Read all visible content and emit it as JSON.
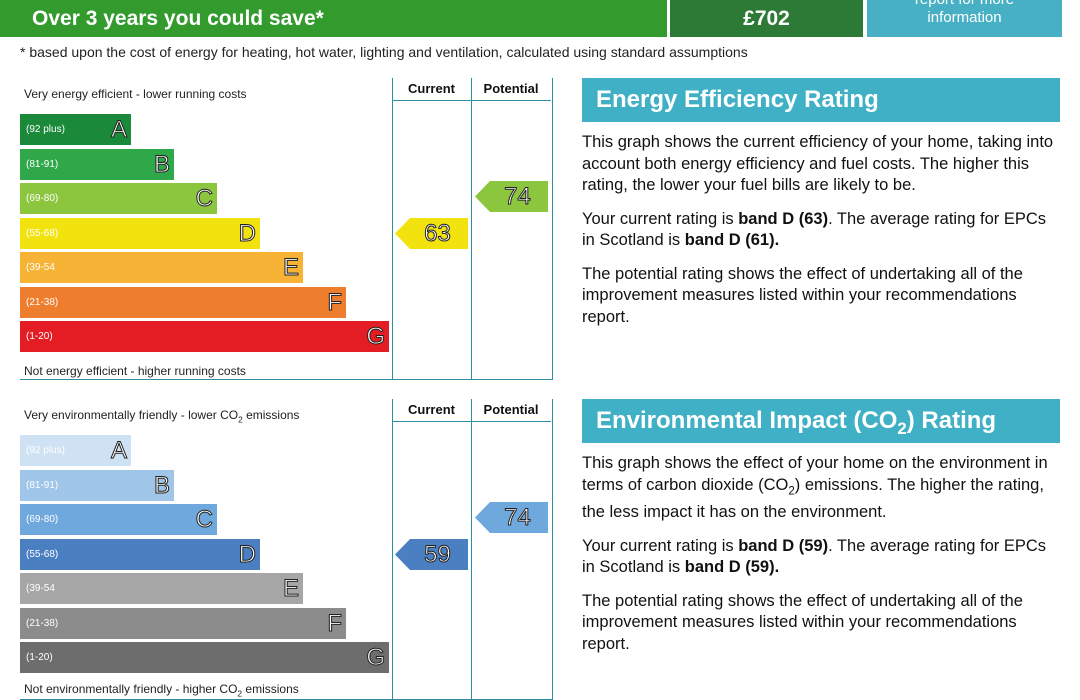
{
  "savings_bar": {
    "label": "Over 3 years you could save*",
    "amount": "£702",
    "link": "report for more information"
  },
  "footnote": "* based upon the cost of energy for heating, hot water, lighting and ventilation, calculated using standard assumptions",
  "ratings": [
    {
      "top_label": [
        {
          "text": "Very energy efficient - lower running costs"
        }
      ],
      "bottom_label": [
        {
          "text": "Not energy efficient - higher running costs"
        }
      ],
      "column_headers": [
        "Current",
        "Potential"
      ],
      "bands": [
        {
          "range": "(92 plus)",
          "letter": "A",
          "color": "#1a8a3a"
        },
        {
          "range": "(81-91)",
          "letter": "B",
          "color": "#2fa84a"
        },
        {
          "range": "(69-80)",
          "letter": "C",
          "color": "#8cc63f"
        },
        {
          "range": "(55-68)",
          "letter": "D",
          "color": "#f2e30f"
        },
        {
          "range": "(39-54",
          "letter": "E",
          "color": "#f6b335"
        },
        {
          "range": "(21-38)",
          "letter": "F",
          "color": "#ef7d2e"
        },
        {
          "range": "(1-20)",
          "letter": "G",
          "color": "#e31d23"
        }
      ],
      "current": 63,
      "potential": 74,
      "heading": [
        {
          "text": "Energy Efficiency Rating"
        }
      ],
      "paragraphs": [
        [
          {
            "text": "This graph shows the current efficiency of your home, taking into account both energy efficiency and fuel costs. The higher this rating, the lower your fuel bills are likely to be."
          }
        ],
        [
          {
            "text": "Your current rating is "
          },
          {
            "text": "band D (63)",
            "bold": true
          },
          {
            "text": ". The average rating for EPCs in Scotland is "
          },
          {
            "text": "band D (61).",
            "bold": true
          }
        ],
        [
          {
            "text": "The potential rating shows the effect of undertaking all of the improvement measures listed within your recommendations report."
          }
        ]
      ]
    },
    {
      "top_label": [
        {
          "text": "Very environmentally friendly - lower CO"
        },
        {
          "text": "2",
          "sub": true
        },
        {
          "text": " emissions"
        }
      ],
      "bottom_label": [
        {
          "text": "Not environmentally friendly - higher CO"
        },
        {
          "text": "2",
          "sub": true
        },
        {
          "text": " emissions"
        }
      ],
      "column_headers": [
        "Current",
        "Potential"
      ],
      "bands": [
        {
          "range": "(92 plus)",
          "letter": "A",
          "color": "#cfe2f3"
        },
        {
          "range": "(81-91)",
          "letter": "B",
          "color": "#9fc5e8"
        },
        {
          "range": "(69-80)",
          "letter": "C",
          "color": "#6fa8dc"
        },
        {
          "range": "(55-68)",
          "letter": "D",
          "color": "#4a7fc1"
        },
        {
          "range": "(39-54",
          "letter": "E",
          "color": "#a6a6a6"
        },
        {
          "range": "(21-38)",
          "letter": "F",
          "color": "#8c8c8c"
        },
        {
          "range": "(1-20)",
          "letter": "G",
          "color": "#6d6d6d"
        }
      ],
      "current": 59,
      "potential": 74,
      "heading": [
        {
          "text": "Environmental Impact (CO"
        },
        {
          "text": "2",
          "sub": true
        },
        {
          "text": ") Rating"
        }
      ],
      "paragraphs": [
        [
          {
            "text": "This graph shows the effect of your home on the environment in terms of carbon dioxide (CO"
          },
          {
            "text": "2",
            "sub": true
          },
          {
            "text": ") emissions. The higher the rating, the less impact it has on the environment."
          }
        ],
        [
          {
            "text": "Your current rating is "
          },
          {
            "text": "band D (59)",
            "bold": true
          },
          {
            "text": ". The average rating for EPCs in Scotland is "
          },
          {
            "text": "band D (59).",
            "bold": true
          }
        ],
        [
          {
            "text": "The potential rating shows the effect of undertaking all of the improvement measures listed within your recommendations report."
          }
        ]
      ]
    }
  ]
}
